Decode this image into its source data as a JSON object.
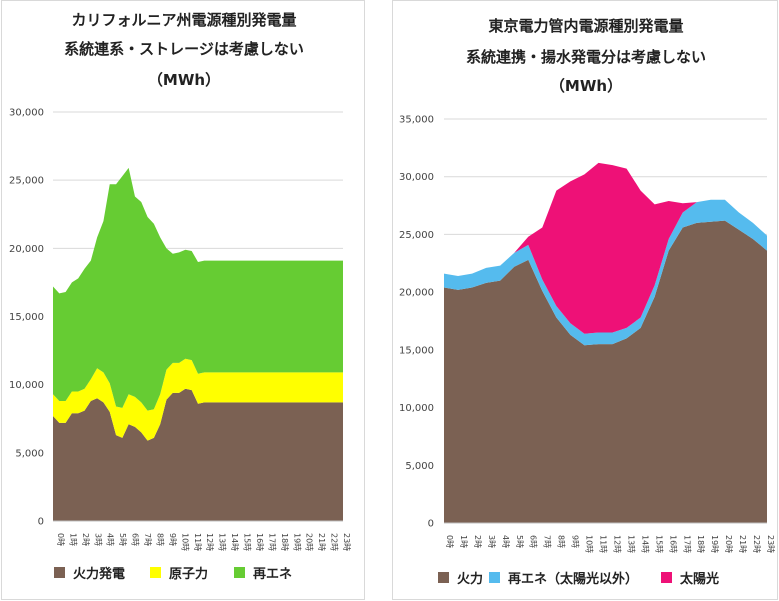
{
  "chart_data": [
    {
      "type": "area",
      "stacked": true,
      "title": [
        "カリフォルニア州電源種別発電量",
        "系統連系・ストレージは考慮しない",
        "（MWh）"
      ],
      "ylim": [
        0,
        30000
      ],
      "y_ticks": [
        "0",
        "5,000",
        "10,000",
        "15,000",
        "20,000",
        "25,000",
        "30,000"
      ],
      "y_tick_values": [
        0,
        5000,
        10000,
        15000,
        20000,
        25000,
        30000
      ],
      "x_points": [
        "0時",
        "1時",
        "2時",
        "3時",
        "4時",
        "5時",
        "6時",
        "7時",
        "8時",
        "9時",
        "10時",
        "11時",
        "12時",
        "13時",
        "14時",
        "15時",
        "16時",
        "17時",
        "18時",
        "19時",
        "20時",
        "21時",
        "22時",
        "23時"
      ],
      "x_sub": [
        0,
        0.5,
        1,
        1.5,
        2,
        2.5,
        3,
        3.5,
        4,
        4.5,
        5,
        5.5,
        6,
        6.5,
        7,
        7.5,
        8,
        8.5,
        9,
        9.5,
        10,
        10.5,
        11,
        11.5,
        12,
        12.5,
        13,
        13.5,
        14,
        14.5,
        15,
        15.5,
        16,
        16.5,
        17,
        17.5,
        18,
        18.5,
        19,
        19.5,
        20,
        20.5,
        21,
        21.5,
        22,
        22.5,
        23
      ],
      "series": [
        {
          "name": "火力発電",
          "color": "#7b6153",
          "values": [
            7700,
            7200,
            7200,
            7900,
            7900,
            8100,
            8800,
            9000,
            8700,
            8000,
            6300,
            6100,
            7100,
            6900,
            6500,
            5900,
            6100,
            7100,
            8900,
            9400,
            9400,
            9700,
            9600,
            8600,
            8700,
            8700,
            8700,
            8700,
            8700,
            8700,
            8700,
            8700,
            8700,
            8700,
            8700,
            8700,
            8700,
            8700,
            8700,
            8700,
            8700,
            8700,
            8700,
            8700,
            8700,
            8700,
            8700
          ]
        },
        {
          "name": "原子力",
          "color": "#ffff00",
          "values": [
            1600,
            1600,
            1600,
            1600,
            1600,
            1600,
            1600,
            2200,
            2200,
            2100,
            2100,
            2200,
            2200,
            2200,
            2200,
            2200,
            2100,
            2200,
            2200,
            2200,
            2200,
            2200,
            2200,
            2200,
            2200,
            2200,
            2200,
            2200,
            2200,
            2200,
            2200,
            2200,
            2200,
            2200,
            2200,
            2200,
            2200,
            2200,
            2200,
            2200,
            2200,
            2200,
            2200,
            2200,
            2200,
            2200,
            2200
          ]
        },
        {
          "name": "再エネ",
          "color": "#66cc33",
          "values": [
            7900,
            7900,
            8000,
            8000,
            8300,
            8800,
            8700,
            9600,
            11100,
            14600,
            16300,
            17000,
            16600,
            14700,
            14700,
            14200,
            13600,
            11500,
            8900,
            8000,
            8100,
            8000,
            8000,
            8200,
            8200,
            8200,
            8200,
            8200,
            8200,
            8200,
            8200,
            8200,
            8200,
            8200,
            8200,
            8200,
            8200,
            8200,
            8200,
            8200,
            8200,
            8200,
            8200,
            8200,
            8200,
            8200,
            8200
          ]
        }
      ],
      "legend": [
        "火力発電",
        "原子力",
        "再エネ"
      ]
    },
    {
      "type": "area",
      "stacked": true,
      "title": [
        "東京電力管内電源種別発電量",
        "系統連携・揚水発電分は考慮しない",
        "（MWh）"
      ],
      "ylim": [
        0,
        35000
      ],
      "y_ticks": [
        "0",
        "5,000",
        "10,000",
        "15,000",
        "20,000",
        "25,000",
        "30,000",
        "35,000"
      ],
      "y_tick_values": [
        0,
        5000,
        10000,
        15000,
        20000,
        25000,
        30000,
        35000
      ],
      "x_points": [
        "0時",
        "1時",
        "2時",
        "3時",
        "4時",
        "5時",
        "6時",
        "7時",
        "8時",
        "9時",
        "10時",
        "11時",
        "12時",
        "13時",
        "14時",
        "15時",
        "16時",
        "17時",
        "18時",
        "19時",
        "20時",
        "21時",
        "22時",
        "23時"
      ],
      "series": [
        {
          "name": "火力",
          "color": "#7b6153",
          "values": [
            20400,
            20200,
            20400,
            20800,
            21000,
            22200,
            22800,
            20100,
            17800,
            16300,
            15400,
            15500,
            15500,
            16000,
            16900,
            19600,
            23600,
            25600,
            26000,
            26100,
            26200,
            25400,
            24600,
            23600
          ]
        },
        {
          "name": "再エネ（太陽光以外）",
          "color": "#55bbee",
          "values": [
            1200,
            1200,
            1200,
            1300,
            1300,
            1200,
            1300,
            1000,
            1000,
            1000,
            1000,
            1000,
            1000,
            900,
            900,
            1000,
            1000,
            1300,
            1800,
            1900,
            1800,
            1500,
            1400,
            1300
          ]
        },
        {
          "name": "太陽光",
          "color": "#ee1177",
          "values": [
            0,
            0,
            0,
            0,
            0,
            0,
            700,
            4500,
            10000,
            12300,
            13800,
            14700,
            14500,
            13800,
            11000,
            7000,
            3300,
            800,
            0,
            0,
            0,
            0,
            0,
            0
          ]
        }
      ],
      "legend": [
        "火力",
        "再エネ（太陽光以外）",
        "太陽光"
      ]
    }
  ]
}
